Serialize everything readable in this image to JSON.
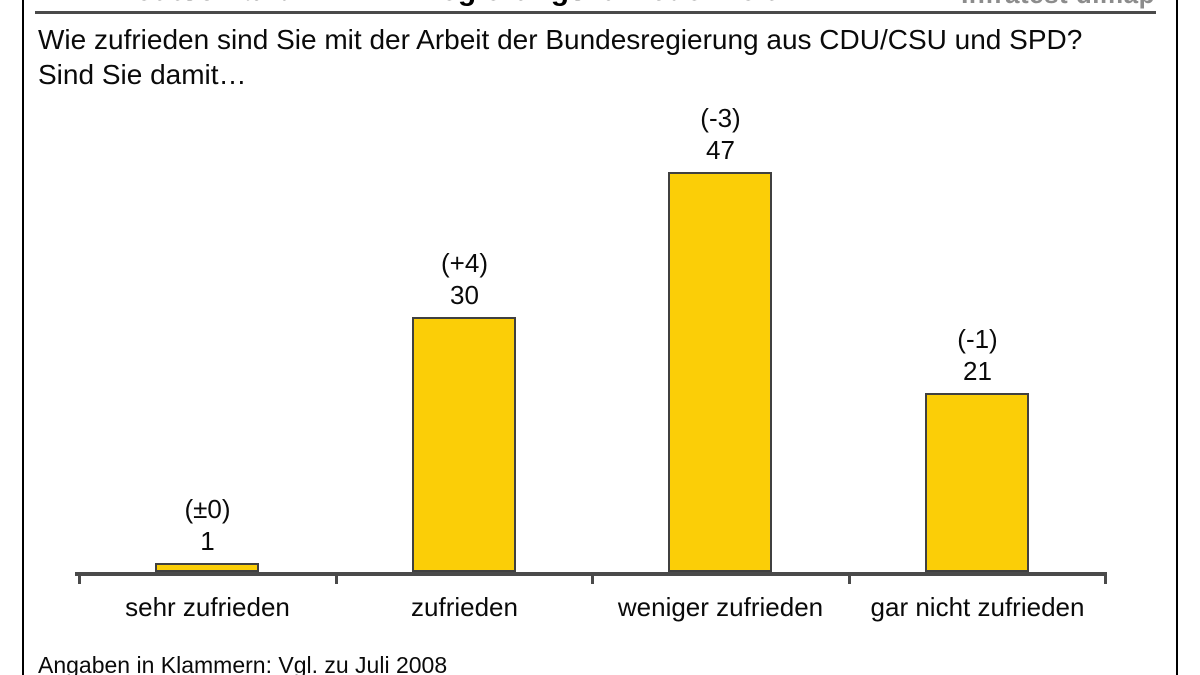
{
  "header": {
    "title": "ARD-DeutschlandTREND: Regierungszufriedenheit",
    "logo": "Infratest dimap"
  },
  "question": "Wie zufrieden sind Sie mit der Arbeit der Bundesregierung aus CDU/CSU und SPD? Sind Sie damit…",
  "footnote": "Angaben in Klammern: Vgl. zu Juli 2008",
  "chart_data": {
    "type": "bar",
    "title": "ARD-DeutschlandTREND: Regierungszufriedenheit",
    "categories": [
      "sehr zufrieden",
      "zufrieden",
      "weniger zufrieden",
      "gar nicht zufrieden"
    ],
    "values": [
      1,
      30,
      47,
      21
    ],
    "change_labels": [
      "(±0)",
      "(+4)",
      "(-3)",
      "(-1)"
    ],
    "xlabel": "",
    "ylabel": "",
    "ylim": [
      0,
      50
    ],
    "unit": "Prozent",
    "grid": false,
    "legend": "none",
    "colors": {
      "bar_fill": "#FBCE07",
      "bar_border": "#404040",
      "axis": "#4a4a4a",
      "frame": "#000000",
      "logo_gray": "#8c8c8c"
    }
  }
}
